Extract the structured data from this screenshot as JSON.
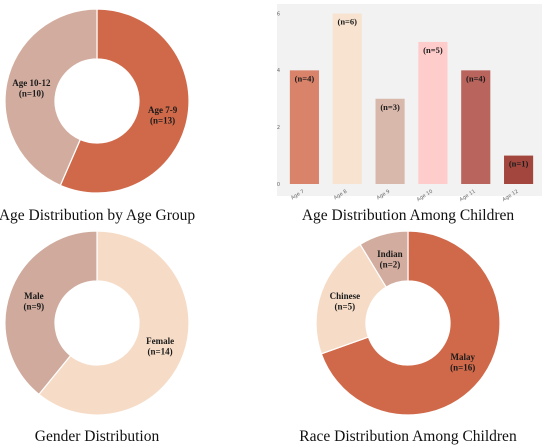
{
  "chart_data": [
    {
      "type": "pie",
      "title": "Age Distribution by Age Group",
      "slices": [
        {
          "label": "Age 7-9",
          "count_label": "(n=13)",
          "value": 13,
          "color": "#d0694a"
        },
        {
          "label": "Age 10-12",
          "count_label": "(n=10)",
          "value": 10,
          "color": "#d2ad9f"
        }
      ]
    },
    {
      "type": "bar",
      "title": "Age Distribution Among Children",
      "categories": [
        "Age 7",
        "Age 8",
        "Age 9",
        "Age 10",
        "Age 11",
        "Age 12"
      ],
      "values": [
        4,
        6,
        3,
        5,
        4,
        1
      ],
      "data_labels": [
        "(n=4)",
        "(n=6)",
        "(n=3)",
        "(n=5)",
        "(n=4)",
        "(n=1)"
      ],
      "colors": [
        "#d9836a",
        "#f7e3cf",
        "#d8b8ab",
        "#fecccb",
        "#b9645c",
        "#a3473e"
      ],
      "yticks": [
        "0",
        "2",
        "4",
        "6"
      ],
      "ylim": [
        0,
        6.3
      ],
      "grid": false,
      "background": "#f2f2f2"
    },
    {
      "type": "pie",
      "title": "Gender Distribution",
      "slices": [
        {
          "label": "Female",
          "count_label": "(n=14)",
          "value": 14,
          "color": "#f6dcc7"
        },
        {
          "label": "Male",
          "count_label": "(n=9)",
          "value": 9,
          "color": "#cfaa9d"
        }
      ]
    },
    {
      "type": "pie",
      "title": "Race Distribution Among Children",
      "slices": [
        {
          "label": "Malay",
          "count_label": "(n=16)",
          "value": 16,
          "color": "#d0694a"
        },
        {
          "label": "Chinese",
          "count_label": "(n=5)",
          "value": 5,
          "color": "#f6dcc7"
        },
        {
          "label": "Indian",
          "count_label": "(n=2)",
          "value": 2,
          "color": "#d2ad9f"
        }
      ]
    }
  ]
}
